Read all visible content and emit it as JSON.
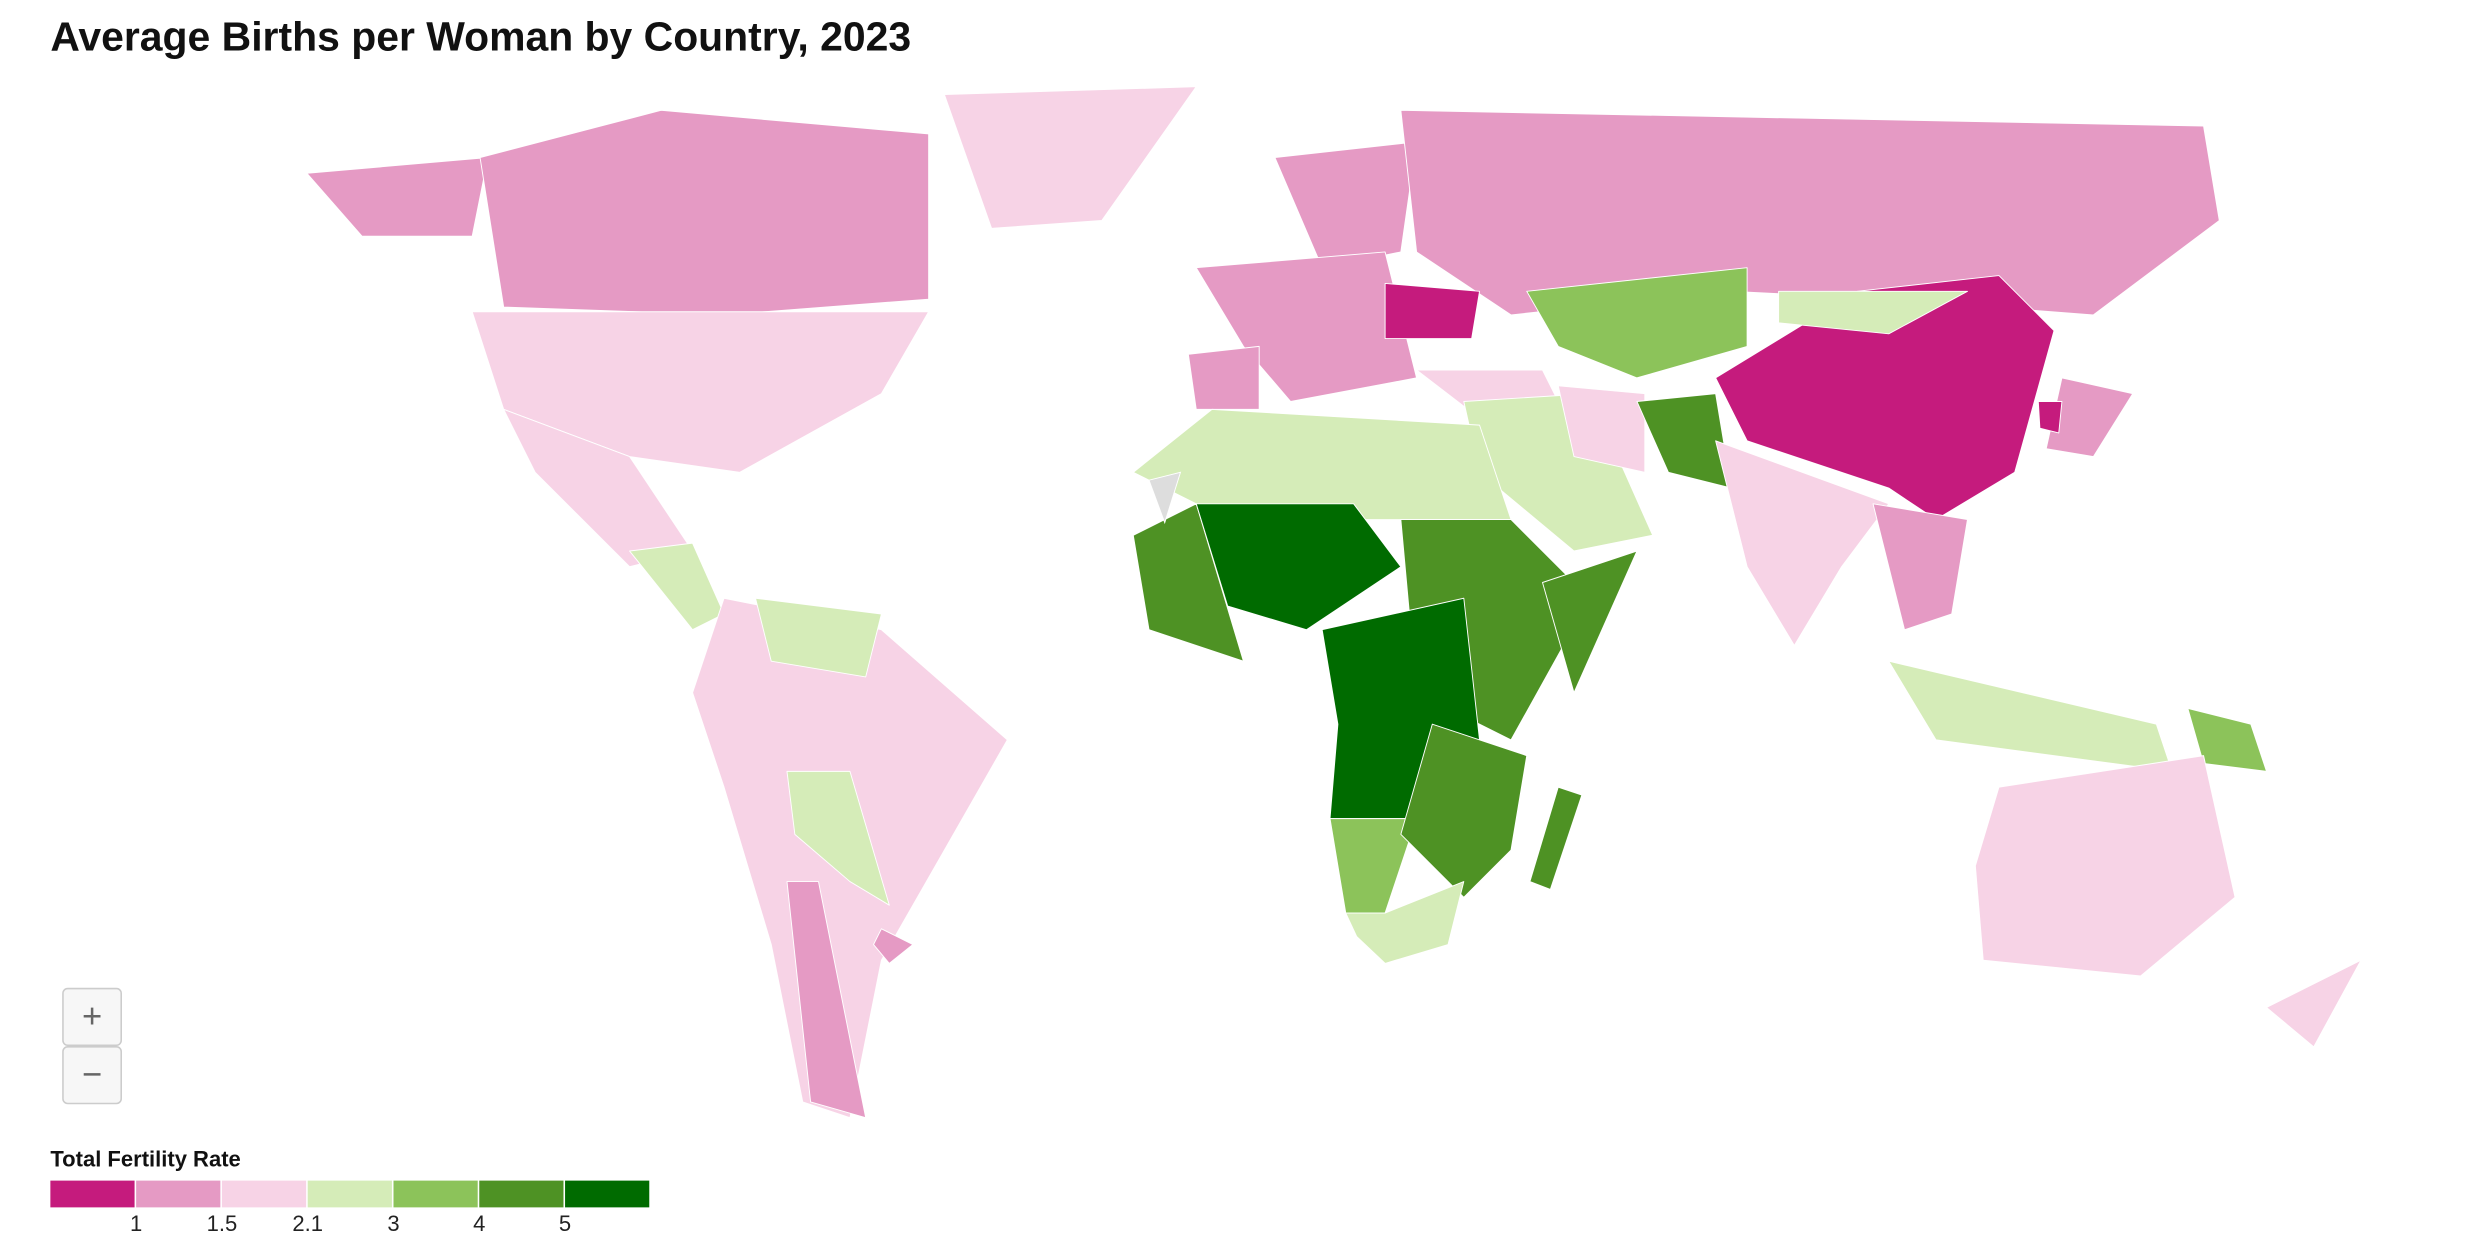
{
  "header": {
    "title": "Average Births per Woman by Country, 2023"
  },
  "legend": {
    "title": "Total Fertility Rate",
    "colors": [
      "#c51b7d",
      "#e59ac4",
      "#f7d3e6",
      "#d5ecb8",
      "#8cc35a",
      "#4e9224",
      "#006b00"
    ],
    "ticks": [
      1,
      1.5,
      2.1,
      3,
      4,
      5
    ]
  },
  "zoom": {
    "in": "+",
    "out": "−"
  }
}
